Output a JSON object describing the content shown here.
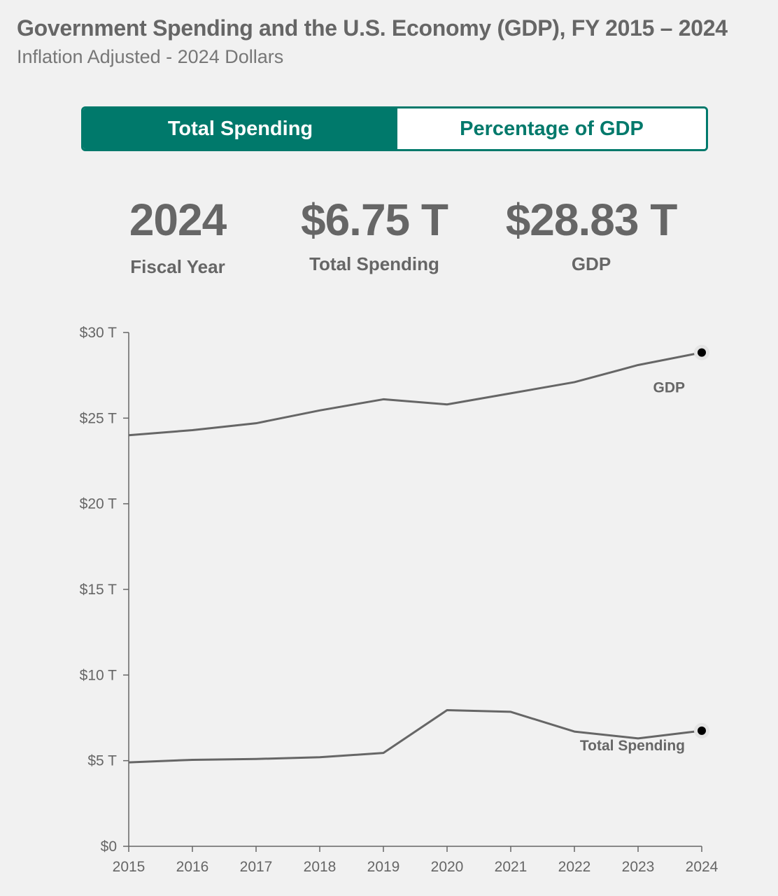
{
  "header": {
    "title": "Government Spending and the U.S. Economy (GDP), FY 2015 – 2024",
    "subtitle": "Inflation Adjusted - 2024 Dollars"
  },
  "toggle": {
    "active_label": "Total Spending",
    "inactive_label": "Percentage of GDP"
  },
  "stats": {
    "year_value": "2024",
    "year_label": "Fiscal Year",
    "spending_value": "$6.75 T",
    "spending_label": "Total Spending",
    "gdp_value": "$28.83 T",
    "gdp_label": "GDP"
  },
  "colors": {
    "accent": "#00796b",
    "line": "#666666",
    "marker": "#000000",
    "background": "#f1f1f1"
  },
  "chart_data": {
    "type": "line",
    "x": [
      2015,
      2016,
      2017,
      2018,
      2019,
      2020,
      2021,
      2022,
      2023,
      2024
    ],
    "series": [
      {
        "name": "GDP",
        "values": [
          24.0,
          24.3,
          24.7,
          25.45,
          26.1,
          25.8,
          26.45,
          27.1,
          28.1,
          28.83
        ]
      },
      {
        "name": "Total Spending",
        "values": [
          4.9,
          5.05,
          5.1,
          5.2,
          5.45,
          7.95,
          7.85,
          6.7,
          6.3,
          6.75
        ]
      }
    ],
    "yticks": [
      "$0",
      "$5 T",
      "$10 T",
      "$15 T",
      "$20 T",
      "$25 T",
      "$30 T"
    ],
    "ytick_values": [
      0,
      5,
      10,
      15,
      20,
      25,
      30
    ],
    "ylim": [
      0,
      30
    ],
    "xlim": [
      2015,
      2024
    ],
    "grid": false,
    "highlight_year": 2024
  }
}
